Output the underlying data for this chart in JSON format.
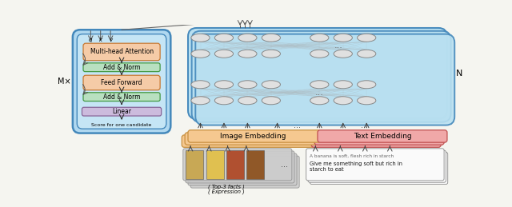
{
  "fig_width": 6.4,
  "fig_height": 2.59,
  "dpi": 100,
  "bg_color": "#f5f5f0",
  "light_blue": "#b8dff0",
  "blue_border": "#5599bb",
  "orange_box": "#f5cba7",
  "orange_box_edge": "#c87830",
  "green_box": "#b8e0c0",
  "green_box_edge": "#449944",
  "lavender_box": "#ccbbdd",
  "lavender_box_edge": "#886699",
  "image_embed_color": "#f5c890",
  "image_embed_edge": "#c89040",
  "text_embed_color": "#f0a8a8",
  "text_embed_edge": "#c05050",
  "node_fill": "#e0e0e0",
  "node_edge": "#888888",
  "mx_label": "M×",
  "n_label": "N",
  "transformer_label": "Multi-head Attention",
  "add_norm1": "Add & Norm",
  "feed_forward": "Feed Forward",
  "add_norm2": "Add & Norm",
  "linear": "Linear",
  "score_text": "Score for one candidate",
  "top3_label": "( Top-3 facts )",
  "expression_label": "( Expression )",
  "image_embed_label": "Image Embedding",
  "text_embed_label": "Text Embedding",
  "fact_text": "A banana is soft, flesh rich in starch",
  "expr_text": "Give me something soft but rich in\nstarch to eat"
}
